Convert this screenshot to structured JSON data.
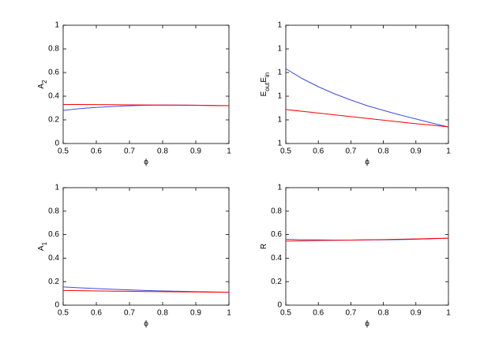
{
  "chart_data": [
    {
      "type": "line",
      "ylabel": [
        "A",
        "2"
      ],
      "xlabel": "ϕ",
      "x": [
        0.5,
        0.55,
        0.6,
        0.65,
        0.7,
        0.75,
        0.8,
        0.85,
        0.9,
        0.95,
        1
      ],
      "series": [
        {
          "color": "#3a4fe0",
          "values": [
            0.28,
            0.295,
            0.305,
            0.313,
            0.319,
            0.323,
            0.325,
            0.325,
            0.324,
            0.322,
            0.32
          ]
        },
        {
          "color": "#ff0000",
          "values": [
            0.33,
            0.33,
            0.329,
            0.328,
            0.327,
            0.326,
            0.325,
            0.324,
            0.323,
            0.321,
            0.32
          ]
        }
      ],
      "xlim": [
        0.5,
        1
      ],
      "xticks": [
        0.5,
        0.6,
        0.7,
        0.8,
        0.9,
        1
      ],
      "ylim": [
        0,
        1
      ],
      "yticks": [
        0,
        0.2,
        0.4,
        0.6,
        0.8,
        1
      ]
    },
    {
      "type": "line",
      "ylabel": [
        "E",
        "out",
        "E",
        "in"
      ],
      "xlabel": "ϕ",
      "x": [
        0.5,
        0.55,
        0.6,
        0.65,
        0.7,
        0.75,
        0.8,
        0.85,
        0.9,
        0.95,
        1
      ],
      "series": [
        {
          "color": "#3a4fe0",
          "values": [
            1.253,
            1.22,
            1.192,
            1.168,
            1.147,
            1.128,
            1.112,
            1.097,
            1.083,
            1.069,
            1.056
          ]
        },
        {
          "color": "#ff0000",
          "values": [
            1.115,
            1.109,
            1.103,
            1.097,
            1.091,
            1.085,
            1.079,
            1.073,
            1.067,
            1.062,
            1.056
          ]
        }
      ],
      "xlim": [
        0.5,
        1
      ],
      "xticks": [
        0.5,
        0.6,
        0.7,
        0.8,
        0.9,
        1
      ],
      "ylim": [
        1,
        1.4
      ],
      "yticks": [
        1,
        {
          "value": 1.08,
          "label": "1"
        },
        {
          "value": 1.16,
          "label": "1"
        },
        {
          "value": 1.24,
          "label": "1"
        },
        {
          "value": 1.32,
          "label": "1"
        },
        {
          "value": 1.4,
          "label": "1"
        }
      ]
    },
    {
      "type": "line",
      "ylabel": [
        "A",
        "1"
      ],
      "xlabel": "ϕ",
      "x": [
        0.5,
        0.55,
        0.6,
        0.65,
        0.7,
        0.75,
        0.8,
        0.85,
        0.9,
        0.95,
        1
      ],
      "series": [
        {
          "color": "#3a4fe0",
          "values": [
            0.155,
            0.148,
            0.141,
            0.135,
            0.13,
            0.125,
            0.121,
            0.118,
            0.115,
            0.112,
            0.11
          ]
        },
        {
          "color": "#ff0000",
          "values": [
            0.125,
            0.123,
            0.121,
            0.119,
            0.118,
            0.116,
            0.115,
            0.113,
            0.112,
            0.111,
            0.11
          ]
        }
      ],
      "xlim": [
        0.5,
        1
      ],
      "xticks": [
        0.5,
        0.6,
        0.7,
        0.8,
        0.9,
        1
      ],
      "ylim": [
        0,
        1
      ],
      "yticks": [
        0,
        0.2,
        0.4,
        0.6,
        0.8,
        1
      ]
    },
    {
      "type": "line",
      "ylabel": [
        "R"
      ],
      "xlabel": "ϕ",
      "x": [
        0.5,
        0.55,
        0.6,
        0.65,
        0.7,
        0.75,
        0.8,
        0.85,
        0.9,
        0.95,
        1
      ],
      "series": [
        {
          "color": "#3a4fe0",
          "values": [
            0.56,
            0.557,
            0.555,
            0.554,
            0.554,
            0.555,
            0.556,
            0.558,
            0.561,
            0.565,
            0.57
          ]
        },
        {
          "color": "#ff0000",
          "values": [
            0.545,
            0.547,
            0.55,
            0.552,
            0.554,
            0.556,
            0.558,
            0.561,
            0.564,
            0.567,
            0.57
          ]
        }
      ],
      "xlim": [
        0.5,
        1
      ],
      "xticks": [
        0.5,
        0.6,
        0.7,
        0.8,
        0.9,
        1
      ],
      "ylim": [
        0,
        1
      ],
      "yticks": [
        0,
        0.2,
        0.4,
        0.6,
        0.8,
        1
      ]
    }
  ]
}
